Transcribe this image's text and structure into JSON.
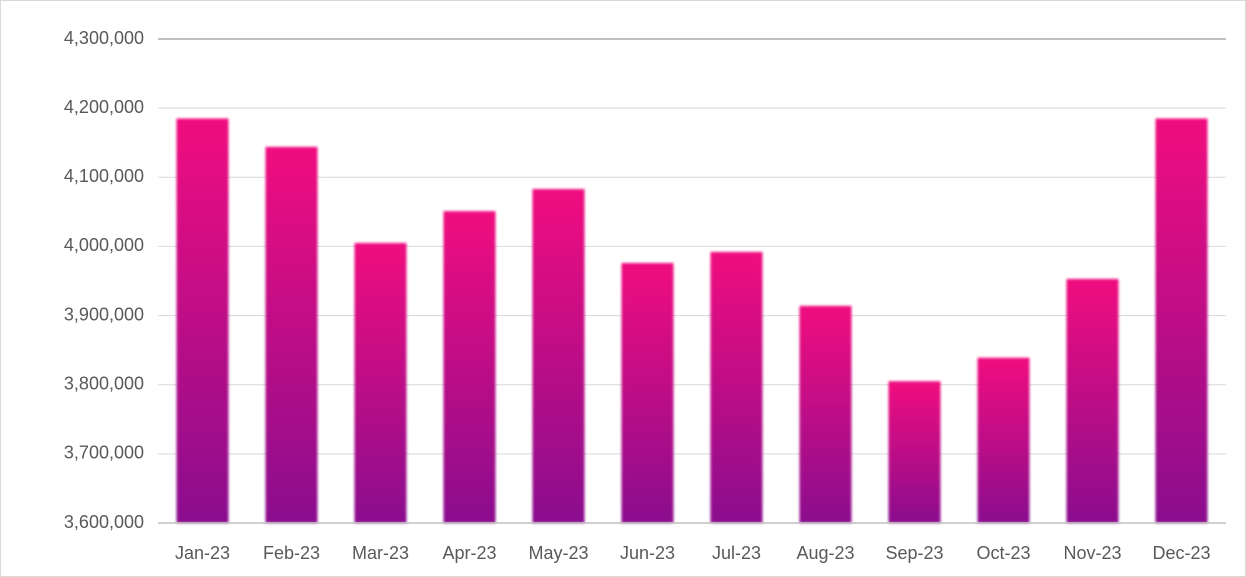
{
  "chart_data": {
    "type": "bar",
    "categories": [
      "Jan-23",
      "Feb-23",
      "Mar-23",
      "Apr-23",
      "May-23",
      "Jun-23",
      "Jul-23",
      "Aug-23",
      "Sep-23",
      "Oct-23",
      "Nov-23",
      "Dec-23"
    ],
    "values": [
      4185000,
      4144000,
      4005000,
      4051000,
      4083000,
      3976000,
      3992000,
      3914000,
      3805000,
      3839000,
      3953000,
      4185000
    ],
    "color": "#f0087f",
    "color_bottom": "#8a0d8e",
    "ylim": [
      3600000,
      4300000
    ],
    "yticks": [
      {
        "value": 3600000,
        "label": "3,600,000"
      },
      {
        "value": 3700000,
        "label": "3,700,000"
      },
      {
        "value": 3800000,
        "label": "3,800,000"
      },
      {
        "value": 3900000,
        "label": "3,900,000"
      },
      {
        "value": 4000000,
        "label": "4,000,000"
      },
      {
        "value": 4100000,
        "label": "4,100,000"
      },
      {
        "value": 4200000,
        "label": "4,200,000"
      },
      {
        "value": 4300000,
        "label": "4,300,000"
      }
    ],
    "grid": true
  }
}
